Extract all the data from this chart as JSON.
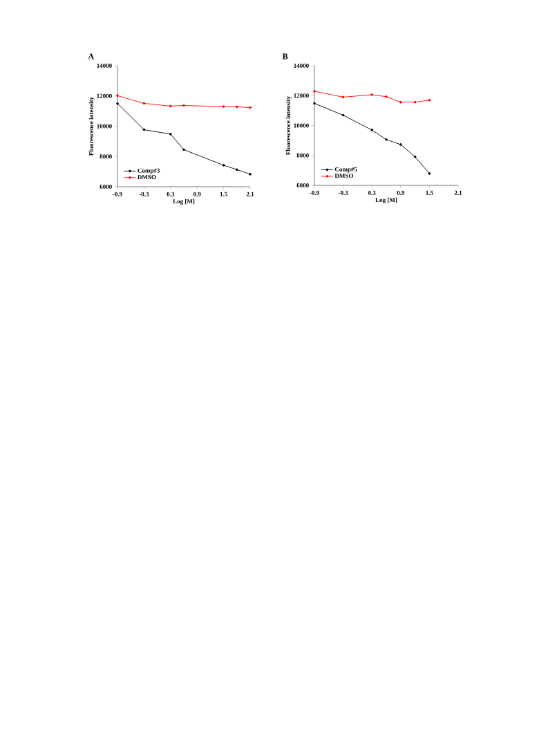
{
  "chart_data": [
    {
      "type": "line",
      "title": "A",
      "xlabel": "Log [M]",
      "ylabel": "Fluorescence intensity",
      "xlim": [
        -0.9,
        2.1
      ],
      "ylim": [
        6000,
        14000
      ],
      "xticks": [
        -0.9,
        -0.3,
        0.3,
        0.9,
        1.5,
        2.1
      ],
      "yticks": [
        6000,
        8000,
        10000,
        12000,
        14000
      ],
      "grid": false,
      "legend": "bottom left",
      "marker": "circle",
      "line_style": "solid",
      "series": [
        {
          "name": "Comp#3",
          "color": "#000000",
          "x": [
            -0.9,
            -0.3,
            0.3,
            0.6,
            1.5,
            1.8,
            2.1
          ],
          "values": [
            11500,
            9770,
            9480,
            8450,
            7420,
            7130,
            6830
          ]
        },
        {
          "name": "DMSO",
          "color": "#ff0000",
          "x": [
            -0.9,
            -0.3,
            0.3,
            0.6,
            1.5,
            1.8,
            2.1
          ],
          "values": [
            12020,
            11510,
            11330,
            11370,
            11300,
            11280,
            11230
          ]
        }
      ]
    },
    {
      "type": "line",
      "title": "B",
      "xlabel": "Log [M]",
      "ylabel": "Fluorescence intensity",
      "xlim": [
        -0.9,
        2.1
      ],
      "ylim": [
        6000,
        14000
      ],
      "xticks": [
        -0.9,
        -0.3,
        0.3,
        0.9,
        1.5,
        2.1
      ],
      "yticks": [
        6000,
        8000,
        10000,
        12000,
        14000
      ],
      "grid": false,
      "legend": "bottom left",
      "marker": "circle",
      "line_style": "solid",
      "series": [
        {
          "name": "Comp#5",
          "color": "#000000",
          "x": [
            -0.9,
            -0.3,
            0.3,
            0.6,
            0.9,
            1.2,
            1.5
          ],
          "values": [
            11480,
            10690,
            9700,
            9060,
            8730,
            7910,
            6790
          ]
        },
        {
          "name": "DMSO",
          "color": "#ff0000",
          "x": [
            -0.9,
            -0.3,
            0.3,
            0.6,
            0.9,
            1.2,
            1.5
          ],
          "values": [
            12290,
            11900,
            12060,
            11930,
            11560,
            11560,
            11700
          ]
        }
      ]
    }
  ]
}
